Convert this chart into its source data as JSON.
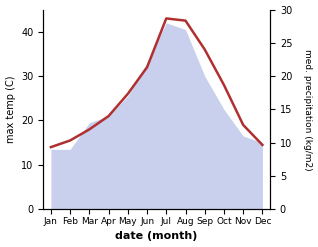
{
  "months": [
    "Jan",
    "Feb",
    "Mar",
    "Apr",
    "May",
    "Jun",
    "Jul",
    "Aug",
    "Sep",
    "Oct",
    "Nov",
    "Dec"
  ],
  "max_temp": [
    14.0,
    15.5,
    18.0,
    21.0,
    26.0,
    32.0,
    43.0,
    42.5,
    36.0,
    28.0,
    19.0,
    14.5
  ],
  "precipitation": [
    9.0,
    9.0,
    13.0,
    14.0,
    17.0,
    22.0,
    28.0,
    27.0,
    20.0,
    15.0,
    11.0,
    10.0
  ],
  "temp_color": "#b03030",
  "precip_fill_color": "#c8d0ee",
  "temp_ylim": [
    0,
    45
  ],
  "precip_ylim": [
    0,
    30
  ],
  "temp_yticks": [
    0,
    10,
    20,
    30,
    40
  ],
  "precip_yticks": [
    0,
    5,
    10,
    15,
    20,
    25,
    30
  ],
  "xlabel": "date (month)",
  "ylabel_left": "max temp (C)",
  "ylabel_right": "med. precipitation (kg/m2)"
}
